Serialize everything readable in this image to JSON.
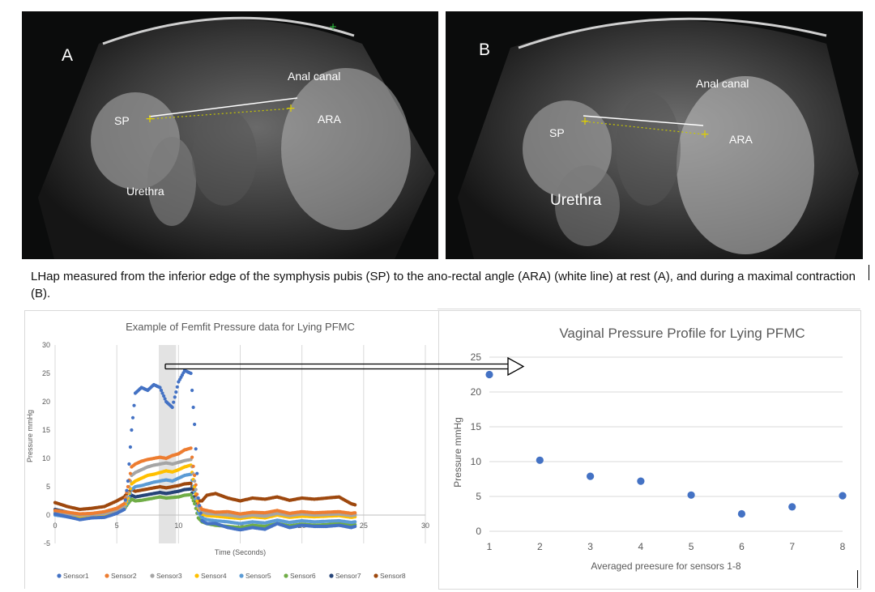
{
  "panel_a": {
    "letter": "A",
    "sp": "SP",
    "anal_canal": "Anal canal",
    "ara": "ARA",
    "urethra": "Urethra"
  },
  "panel_b": {
    "letter": "B",
    "sp": "SP",
    "anal_canal": "Anal canal",
    "ara": "ARA",
    "urethra": "Urethra"
  },
  "caption": "LHap measured from the inferior edge of the symphysis pubis (SP) to the ano-rectal angle (ARA) (white line) at rest (A), and during a maximal contraction (B).",
  "colors": {
    "sensor1": "#4472c4",
    "sensor2": "#ed7d31",
    "sensor3": "#a5a5a5",
    "sensor4": "#ffc000",
    "sensor5": "#5b9bd5",
    "sensor6": "#70ad47",
    "sensor7": "#264478",
    "sensor8": "#9e480e",
    "highlight": "#d9d9d9",
    "arrow": "#000000"
  },
  "chart_data": [
    {
      "type": "scatter",
      "title": "Example of Femfit Pressure data for Lying PFMC",
      "xlabel": "Time (Seconds)",
      "ylabel": "Pressure mmHg",
      "xlim": [
        0,
        30
      ],
      "ylim": [
        -5,
        30
      ],
      "xticks": [
        "0",
        "5",
        "10",
        "15",
        "20",
        "25",
        "30"
      ],
      "yticks": [
        "-5",
        "0",
        "5",
        "10",
        "15",
        "20",
        "25",
        "30"
      ],
      "highlight_x": [
        8.4,
        9.8
      ],
      "grid": "vertical",
      "legend_position": "bottom",
      "series": [
        {
          "name": "Sensor1",
          "x": [
            0,
            1,
            2,
            3,
            4,
            5,
            5.6,
            5.9,
            6.2,
            6.5,
            7,
            7.5,
            8,
            8.5,
            9,
            9.5,
            10,
            10.5,
            11,
            11.3,
            11.6,
            11.9,
            12.3,
            13,
            14,
            15,
            16,
            17,
            18,
            19,
            20,
            21,
            22,
            23,
            24,
            24.3
          ],
          "y": [
            0.2,
            -0.3,
            -0.8,
            -0.5,
            -0.4,
            0.3,
            1.0,
            6.0,
            15.0,
            21.5,
            22.5,
            22.0,
            23.0,
            22.5,
            20.0,
            19.0,
            23.5,
            25.5,
            25.0,
            16.0,
            3.0,
            -1.0,
            -1.5,
            -1.5,
            -2.2,
            -2.6,
            -2.2,
            -2.5,
            -1.5,
            -2.2,
            -1.8,
            -2.0,
            -2.0,
            -1.8,
            -2.2,
            -2.0
          ]
        },
        {
          "name": "Sensor2",
          "x": [
            0,
            1,
            2,
            3,
            4,
            5,
            5.6,
            5.9,
            6.2,
            6.5,
            7,
            7.5,
            8,
            8.5,
            9,
            9.5,
            10,
            10.5,
            11,
            11.3,
            11.6,
            11.9,
            12.3,
            13,
            14,
            15,
            16,
            17,
            18,
            19,
            20,
            21,
            22,
            23,
            24,
            24.3
          ],
          "y": [
            0.8,
            0.5,
            0.2,
            0.3,
            0.6,
            1.2,
            2.0,
            5.0,
            8.5,
            9.0,
            9.5,
            9.8,
            10.0,
            10.2,
            10.0,
            10.5,
            10.8,
            11.5,
            11.8,
            7.0,
            2.0,
            1.0,
            0.8,
            0.5,
            0.6,
            0.2,
            0.5,
            0.4,
            0.8,
            0.3,
            0.6,
            0.4,
            0.5,
            0.6,
            0.3,
            0.4
          ]
        },
        {
          "name": "Sensor3",
          "x": [
            0,
            1,
            2,
            3,
            4,
            5,
            5.6,
            5.9,
            6.2,
            6.5,
            7,
            7.5,
            8,
            8.5,
            9,
            9.5,
            10,
            10.5,
            11,
            11.3,
            11.6,
            11.9,
            12.3,
            13,
            14,
            15,
            16,
            17,
            18,
            19,
            20,
            21,
            22,
            23,
            24,
            24.3
          ],
          "y": [
            0.5,
            0.2,
            0.0,
            0.1,
            0.3,
            0.9,
            1.6,
            4.0,
            7.0,
            7.5,
            8.0,
            8.5,
            8.8,
            9.0,
            9.2,
            9.0,
            9.3,
            9.6,
            9.8,
            6.0,
            1.5,
            0.6,
            0.3,
            0.2,
            0.0,
            -0.3,
            0.0,
            -0.2,
            0.3,
            -0.1,
            0.2,
            0.0,
            0.1,
            0.2,
            -0.1,
            0.0
          ]
        },
        {
          "name": "Sensor4",
          "x": [
            0,
            1,
            2,
            3,
            4,
            5,
            5.6,
            5.9,
            6.2,
            6.5,
            7,
            7.5,
            8,
            8.5,
            9,
            9.5,
            10,
            10.5,
            11,
            11.3,
            11.6,
            11.9,
            12.3,
            13,
            14,
            15,
            16,
            17,
            18,
            19,
            20,
            21,
            22,
            23,
            24,
            24.3
          ],
          "y": [
            0.3,
            0.0,
            -0.2,
            0.0,
            0.2,
            0.7,
            1.3,
            3.0,
            5.5,
            6.0,
            6.5,
            7.0,
            7.2,
            7.5,
            7.8,
            7.6,
            8.0,
            8.5,
            8.8,
            5.0,
            1.2,
            0.2,
            -0.1,
            -0.2,
            -0.4,
            -0.6,
            -0.3,
            -0.5,
            0.0,
            -0.4,
            -0.2,
            -0.3,
            -0.2,
            -0.1,
            -0.4,
            -0.3
          ]
        },
        {
          "name": "Sensor5",
          "x": [
            0,
            1,
            2,
            3,
            4,
            5,
            5.6,
            5.9,
            6.2,
            6.5,
            7,
            7.5,
            8,
            8.5,
            9,
            9.5,
            10,
            10.5,
            11,
            11.3,
            11.6,
            11.9,
            12.3,
            13,
            14,
            15,
            16,
            17,
            18,
            19,
            20,
            21,
            22,
            23,
            24,
            24.3
          ],
          "y": [
            0.0,
            -0.3,
            -0.6,
            -0.4,
            -0.2,
            0.4,
            1.0,
            2.5,
            4.5,
            5.0,
            5.2,
            5.5,
            5.8,
            6.0,
            6.2,
            6.0,
            6.5,
            7.0,
            7.2,
            4.0,
            0.5,
            -0.5,
            -0.8,
            -1.0,
            -1.2,
            -1.5,
            -1.2,
            -1.4,
            -0.9,
            -1.3,
            -1.0,
            -1.2,
            -1.1,
            -1.0,
            -1.3,
            -1.2
          ]
        },
        {
          "name": "Sensor6",
          "x": [
            0,
            1,
            2,
            3,
            4,
            5,
            5.6,
            5.9,
            6.2,
            6.5,
            7,
            7.5,
            8,
            8.5,
            9,
            9.5,
            10,
            10.5,
            11,
            11.3,
            11.6,
            11.9,
            12.3,
            13,
            14,
            15,
            16,
            17,
            18,
            19,
            20,
            21,
            22,
            23,
            24,
            24.3
          ],
          "y": [
            0.5,
            0.0,
            -0.5,
            -0.3,
            0.0,
            0.5,
            1.0,
            2.0,
            2.8,
            2.5,
            2.6,
            2.8,
            3.0,
            3.2,
            3.0,
            3.1,
            3.2,
            3.5,
            3.6,
            2.0,
            -0.5,
            -1.2,
            -1.5,
            -1.8,
            -2.0,
            -2.2,
            -1.8,
            -2.0,
            -1.5,
            -1.9,
            -1.6,
            -1.8,
            -1.7,
            -1.5,
            -1.8,
            -1.7
          ]
        },
        {
          "name": "Sensor7",
          "x": [
            0,
            1,
            2,
            3,
            4,
            5,
            5.6,
            5.9,
            6.2,
            6.5,
            7,
            7.5,
            8,
            8.5,
            9,
            9.5,
            10,
            10.5,
            11,
            11.3,
            11.6,
            11.9,
            12.3,
            13,
            14,
            15,
            16,
            17,
            18,
            19,
            20,
            21,
            22,
            23,
            24,
            24.3
          ],
          "y": [
            1.0,
            0.5,
            0.0,
            0.2,
            0.5,
            1.2,
            1.8,
            3.0,
            3.5,
            3.2,
            3.4,
            3.6,
            3.8,
            4.0,
            3.8,
            4.0,
            4.2,
            4.5,
            4.6,
            2.5,
            0.8,
            0.0,
            0.2,
            0.3,
            0.0,
            -0.3,
            0.0,
            -0.2,
            0.3,
            0.0,
            0.2,
            0.1,
            0.2,
            0.3,
            0.0,
            0.1
          ]
        },
        {
          "name": "Sensor8",
          "x": [
            0,
            1,
            2,
            3,
            4,
            5,
            5.6,
            5.9,
            6.2,
            6.5,
            7,
            7.5,
            8,
            8.5,
            9,
            9.5,
            10,
            10.5,
            11,
            11.3,
            11.6,
            11.9,
            12.3,
            13,
            14,
            15,
            16,
            17,
            18,
            19,
            20,
            21,
            22,
            23,
            24,
            24.3
          ],
          "y": [
            2.2,
            1.5,
            1.0,
            1.2,
            1.5,
            2.5,
            3.2,
            4.0,
            4.5,
            4.2,
            4.4,
            4.6,
            4.8,
            5.0,
            4.8,
            5.0,
            5.2,
            5.5,
            5.6,
            4.0,
            2.5,
            2.5,
            3.5,
            3.8,
            3.0,
            2.5,
            3.0,
            2.8,
            3.2,
            2.6,
            3.0,
            2.8,
            3.0,
            3.2,
            2.0,
            1.8
          ]
        }
      ]
    },
    {
      "type": "scatter",
      "title": "Vaginal Pressure Profile for Lying PFMC",
      "xlabel": "Averaged preesure for sensors 1-8",
      "ylabel": "Pressure mmHg",
      "xlim": [
        1,
        8
      ],
      "ylim": [
        0,
        25
      ],
      "xticks": [
        "1",
        "2",
        "3",
        "4",
        "5",
        "6",
        "7",
        "8"
      ],
      "yticks": [
        "0",
        "5",
        "10",
        "15",
        "20",
        "25"
      ],
      "grid": "horizontal",
      "series": [
        {
          "x": [
            1,
            2,
            3,
            4,
            5,
            6,
            7,
            8
          ],
          "y": [
            22.5,
            10.2,
            7.9,
            7.2,
            5.2,
            2.5,
            3.5,
            5.1
          ]
        }
      ]
    }
  ]
}
